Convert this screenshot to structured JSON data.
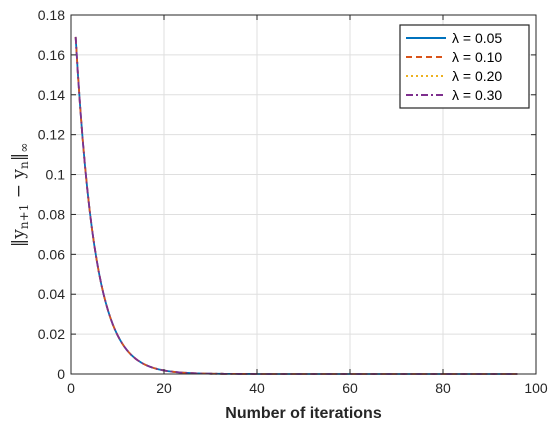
{
  "chart_data": {
    "type": "line",
    "title": "",
    "xlabel": "Number of iterations",
    "ylabel": "||y_{n+1} − y_n||_∞",
    "ylabel_parts": {
      "open": "‖y",
      "sub1": "n+1",
      "mid": " − y",
      "sub2": "n",
      "close": "‖",
      "sub3": "∞"
    },
    "xlim": [
      0,
      100
    ],
    "ylim": [
      0,
      0.18
    ],
    "xticks": [
      0,
      20,
      40,
      60,
      80,
      100
    ],
    "yticks": [
      0,
      0.02,
      0.04,
      0.06,
      0.08,
      0.1,
      0.12,
      0.14,
      0.16,
      0.18
    ],
    "xtick_labels": [
      "0",
      "20",
      "40",
      "60",
      "80",
      "100"
    ],
    "ytick_labels": [
      "0",
      "0.02",
      "0.04",
      "0.06",
      "0.08",
      "0.1",
      "0.12",
      "0.14",
      "0.16",
      "0.18"
    ],
    "grid": true,
    "legend_position": "top-right",
    "curve": {
      "x_start": 1,
      "x_end": 96,
      "y0": 0.169,
      "decay_rate": 0.24
    },
    "series": [
      {
        "name": "λ = 0.05",
        "color": "#0072BD",
        "dash": "solid"
      },
      {
        "name": "λ = 0.10",
        "color": "#D95319",
        "dash": "dashed"
      },
      {
        "name": "λ = 0.20",
        "color": "#EDB120",
        "dash": "dotted"
      },
      {
        "name": "λ = 0.30",
        "color": "#7E2F8E",
        "dash": "dashdot"
      }
    ]
  }
}
